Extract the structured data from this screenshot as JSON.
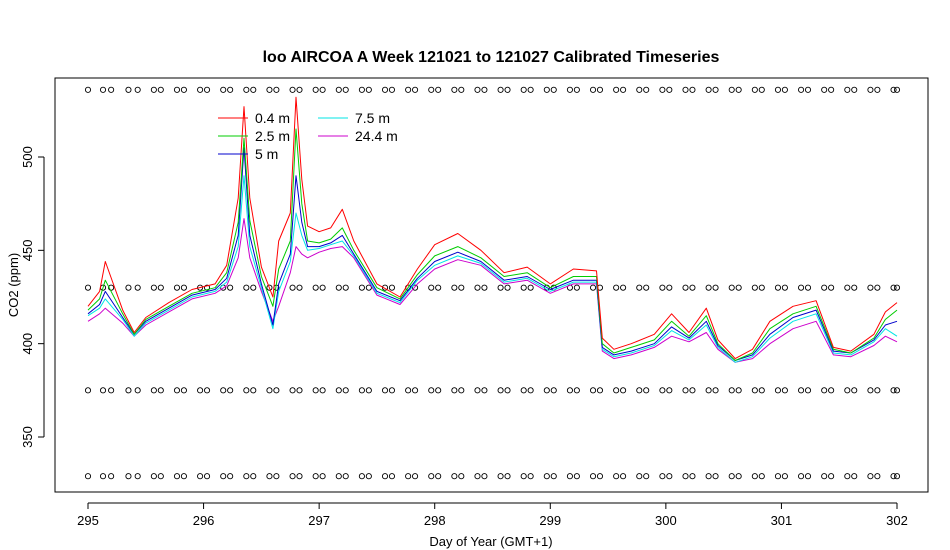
{
  "chart_data": {
    "type": "line",
    "title": "loo AIRCOA A  Week 121021 to 121027  Calibrated Timeseries",
    "xlabel": "Day of Year (GMT+1)",
    "ylabel": "CO2 (ppm)",
    "xlim": [
      295,
      302
    ],
    "ylim": [
      325,
      540
    ],
    "x_ticks": [
      "295",
      "296",
      "297",
      "298",
      "299",
      "300",
      "301",
      "302"
    ],
    "y_ticks": [
      "350",
      "400",
      "450",
      "500"
    ],
    "legend": {
      "placement": "top-left"
    },
    "grid": false,
    "series": [
      {
        "name": "0.4 m",
        "color": "#ff0000",
        "x": [
          295.0,
          295.1,
          295.15,
          295.3,
          295.4,
          295.5,
          295.7,
          295.9,
          296.1,
          296.2,
          296.3,
          296.35,
          296.4,
          296.5,
          296.6,
          296.65,
          296.75,
          296.8,
          296.85,
          296.9,
          297.0,
          297.1,
          297.2,
          297.3,
          297.5,
          297.7,
          297.85,
          298.0,
          298.2,
          298.4,
          298.6,
          298.8,
          299.0,
          299.2,
          299.4,
          299.45,
          299.55,
          299.7,
          299.9,
          300.05,
          300.2,
          300.35,
          300.45,
          300.6,
          300.75,
          300.9,
          301.1,
          301.3,
          301.45,
          301.6,
          301.8,
          301.9,
          302.0
        ],
        "y": [
          420,
          428,
          444,
          418,
          406,
          414,
          422,
          429,
          432,
          442,
          478,
          527,
          478,
          441,
          425,
          455,
          470,
          532,
          488,
          463,
          460,
          462,
          472,
          455,
          432,
          425,
          440,
          453,
          459,
          450,
          438,
          441,
          432,
          440,
          439,
          403,
          397,
          400,
          405,
          416,
          406,
          419,
          402,
          392,
          397,
          412,
          420,
          423,
          398,
          396,
          405,
          417,
          422
        ]
      },
      {
        "name": "2.5 m",
        "color": "#00cc00",
        "x": [
          295.0,
          295.1,
          295.15,
          295.3,
          295.4,
          295.5,
          295.7,
          295.9,
          296.1,
          296.2,
          296.3,
          296.35,
          296.4,
          296.5,
          296.6,
          296.65,
          296.75,
          296.8,
          296.85,
          296.9,
          297.0,
          297.1,
          297.2,
          297.3,
          297.5,
          297.7,
          297.85,
          298.0,
          298.2,
          298.4,
          298.6,
          298.8,
          299.0,
          299.2,
          299.4,
          299.45,
          299.55,
          299.7,
          299.9,
          300.05,
          300.2,
          300.35,
          300.45,
          300.6,
          300.75,
          300.9,
          301.1,
          301.3,
          301.45,
          301.6,
          301.8,
          301.9,
          302.0
        ],
        "y": [
          418,
          424,
          434,
          416,
          405,
          413,
          420,
          427,
          430,
          438,
          465,
          510,
          466,
          436,
          420,
          440,
          455,
          515,
          475,
          455,
          454,
          456,
          462,
          450,
          430,
          424,
          437,
          447,
          452,
          446,
          436,
          438,
          430,
          436,
          436,
          400,
          395,
          398,
          402,
          412,
          404,
          415,
          400,
          391,
          395,
          408,
          416,
          420,
          397,
          395,
          403,
          413,
          418
        ]
      },
      {
        "name": "5 m",
        "color": "#0000cc",
        "x": [
          295.0,
          295.1,
          295.15,
          295.3,
          295.4,
          295.5,
          295.7,
          295.9,
          296.1,
          296.2,
          296.3,
          296.35,
          296.4,
          296.5,
          296.6,
          296.65,
          296.75,
          296.8,
          296.85,
          296.9,
          297.0,
          297.1,
          297.2,
          297.3,
          297.5,
          297.7,
          297.85,
          298.0,
          298.2,
          298.4,
          298.6,
          298.8,
          299.0,
          299.2,
          299.4,
          299.45,
          299.55,
          299.7,
          299.9,
          300.05,
          300.2,
          300.35,
          300.45,
          300.6,
          300.75,
          300.9,
          301.1,
          301.3,
          301.45,
          301.6,
          301.8,
          301.9,
          302.0
        ],
        "y": [
          416,
          421,
          428,
          414,
          405,
          412,
          419,
          426,
          429,
          435,
          458,
          505,
          458,
          432,
          410,
          432,
          448,
          490,
          465,
          452,
          452,
          454,
          458,
          448,
          428,
          423,
          435,
          444,
          449,
          444,
          434,
          436,
          429,
          434,
          434,
          398,
          394,
          396,
          400,
          409,
          403,
          412,
          399,
          391,
          394,
          405,
          414,
          418,
          396,
          395,
          402,
          410,
          412
        ]
      },
      {
        "name": "7.5 m",
        "color": "#00e5e5",
        "x": [
          295.0,
          295.1,
          295.15,
          295.3,
          295.4,
          295.5,
          295.7,
          295.9,
          296.1,
          296.2,
          296.3,
          296.35,
          296.4,
          296.5,
          296.6,
          296.65,
          296.75,
          296.8,
          296.85,
          296.9,
          297.0,
          297.1,
          297.2,
          297.3,
          297.5,
          297.7,
          297.85,
          298.0,
          298.2,
          298.4,
          298.6,
          298.8,
          299.0,
          299.2,
          299.4,
          299.45,
          299.55,
          299.7,
          299.9,
          300.05,
          300.2,
          300.35,
          300.45,
          300.6,
          300.75,
          300.9,
          301.1,
          301.3,
          301.45,
          301.6,
          301.8,
          301.9,
          302.0
        ],
        "y": [
          415,
          419,
          424,
          413,
          404,
          411,
          418,
          425,
          428,
          433,
          452,
          490,
          452,
          430,
          408,
          428,
          444,
          470,
          458,
          450,
          451,
          453,
          455,
          447,
          427,
          422,
          434,
          442,
          447,
          443,
          433,
          435,
          428,
          433,
          433,
          397,
          393,
          395,
          399,
          407,
          402,
          410,
          398,
          390,
          393,
          403,
          412,
          416,
          395,
          394,
          401,
          408,
          404
        ]
      },
      {
        "name": "24.4 m",
        "color": "#cc00cc",
        "x": [
          295.0,
          295.1,
          295.15,
          295.3,
          295.4,
          295.5,
          295.7,
          295.9,
          296.1,
          296.2,
          296.3,
          296.35,
          296.4,
          296.5,
          296.6,
          296.65,
          296.75,
          296.8,
          296.85,
          296.9,
          297.0,
          297.1,
          297.2,
          297.3,
          297.5,
          297.7,
          297.85,
          298.0,
          298.2,
          298.4,
          298.6,
          298.8,
          299.0,
          299.2,
          299.4,
          299.45,
          299.55,
          299.7,
          299.9,
          300.05,
          300.2,
          300.35,
          300.45,
          300.6,
          300.75,
          300.9,
          301.1,
          301.3,
          301.45,
          301.6,
          301.8,
          301.9,
          302.0
        ],
        "y": [
          412,
          416,
          419,
          411,
          404,
          410,
          417,
          424,
          427,
          431,
          446,
          467,
          446,
          428,
          412,
          420,
          438,
          452,
          448,
          446,
          449,
          451,
          452,
          446,
          426,
          421,
          432,
          440,
          445,
          442,
          432,
          434,
          427,
          432,
          432,
          396,
          392,
          394,
          398,
          404,
          401,
          406,
          397,
          390,
          392,
          400,
          408,
          412,
          394,
          393,
          399,
          404,
          401
        ]
      }
    ],
    "markers": {
      "symbol": "open circle",
      "color": "#000000",
      "levels": [
        329,
        375,
        430,
        536
      ],
      "x": [
        295.0,
        295.13,
        295.2,
        295.35,
        295.43,
        295.57,
        295.63,
        295.77,
        295.83,
        295.97,
        296.03,
        296.17,
        296.23,
        296.37,
        296.43,
        296.57,
        296.63,
        296.77,
        296.83,
        296.97,
        297.03,
        297.17,
        297.23,
        297.37,
        297.43,
        297.57,
        297.63,
        297.77,
        297.83,
        297.97,
        298.03,
        298.17,
        298.23,
        298.37,
        298.43,
        298.57,
        298.63,
        298.77,
        298.83,
        298.97,
        299.03,
        299.17,
        299.23,
        299.37,
        299.43,
        299.57,
        299.63,
        299.77,
        299.83,
        299.97,
        300.03,
        300.17,
        300.23,
        300.37,
        300.43,
        300.57,
        300.63,
        300.77,
        300.83,
        300.97,
        301.03,
        301.17,
        301.23,
        301.37,
        301.43,
        301.57,
        301.63,
        301.77,
        301.83,
        301.97,
        302.0
      ]
    }
  }
}
